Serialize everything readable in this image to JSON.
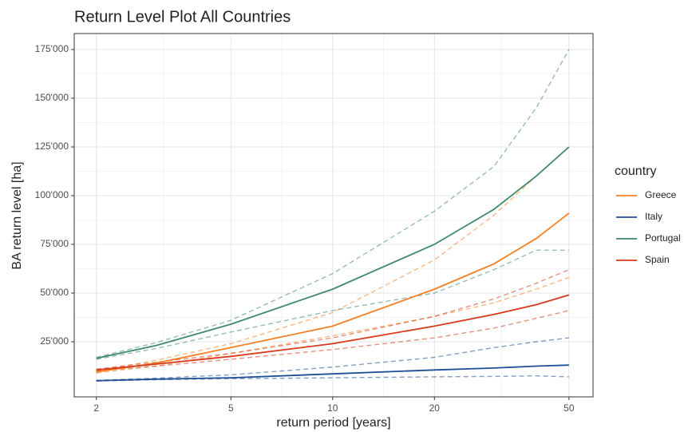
{
  "chart_data": {
    "type": "line",
    "title": "Return Level Plot All Countries",
    "x_label": "return period [years]",
    "y_label": "BA return level [ha]",
    "legend_title": "country",
    "legend_position": "right",
    "log_x": true,
    "grid": true,
    "minor_grid": true,
    "x": [
      2,
      3,
      5,
      10,
      20,
      30,
      40,
      50
    ],
    "xlim": [
      1.72,
      58.9
    ],
    "xticks": [
      2,
      5,
      10,
      20,
      50
    ],
    "ylim": [
      -3300,
      183200
    ],
    "yticks": [
      {
        "value": 25000,
        "label": "25'000"
      },
      {
        "value": 50000,
        "label": "50'000"
      },
      {
        "value": 75000,
        "label": "75'000"
      },
      {
        "value": 100000,
        "label": "100'000"
      },
      {
        "value": 125000,
        "label": "125'000"
      },
      {
        "value": 150000,
        "label": "150'000"
      },
      {
        "value": 175000,
        "label": "175'000"
      }
    ],
    "series": [
      {
        "name": "Greece",
        "color": "#f57f20",
        "values": [
          9500,
          14000,
          22000,
          33000,
          52000,
          65000,
          78000,
          91000
        ],
        "lower": [
          9000,
          12500,
          19000,
          28000,
          38000,
          45000,
          52000,
          58000
        ],
        "upper": [
          10000,
          15500,
          24000,
          40000,
          67000,
          90000,
          110000,
          125000
        ]
      },
      {
        "name": "Italy",
        "color": "#1f4e94",
        "values": [
          5000,
          5800,
          6500,
          8500,
          10500,
          11500,
          12500,
          13000
        ],
        "lower": [
          4800,
          5500,
          6000,
          6500,
          7000,
          7200,
          7500,
          7000
        ],
        "upper": [
          5200,
          6300,
          8000,
          12000,
          17000,
          22000,
          25000,
          27000
        ]
      },
      {
        "name": "Portugal",
        "color": "#3f8a6c",
        "values": [
          16500,
          23000,
          34000,
          52000,
          75000,
          93000,
          110000,
          125000
        ],
        "lower": [
          16000,
          21500,
          30000,
          41000,
          50000,
          62000,
          72000,
          72000
        ],
        "upper": [
          17000,
          24500,
          36000,
          60000,
          92000,
          115000,
          145000,
          175000
        ]
      },
      {
        "name": "Spain",
        "color": "#d63a1a",
        "values": [
          10500,
          13500,
          17500,
          24000,
          33000,
          39000,
          44000,
          49000
        ],
        "lower": [
          10000,
          12500,
          16000,
          21000,
          27000,
          32000,
          37000,
          41000
        ],
        "upper": [
          11000,
          14500,
          19000,
          27000,
          38000,
          47000,
          55000,
          62000
        ]
      }
    ]
  }
}
